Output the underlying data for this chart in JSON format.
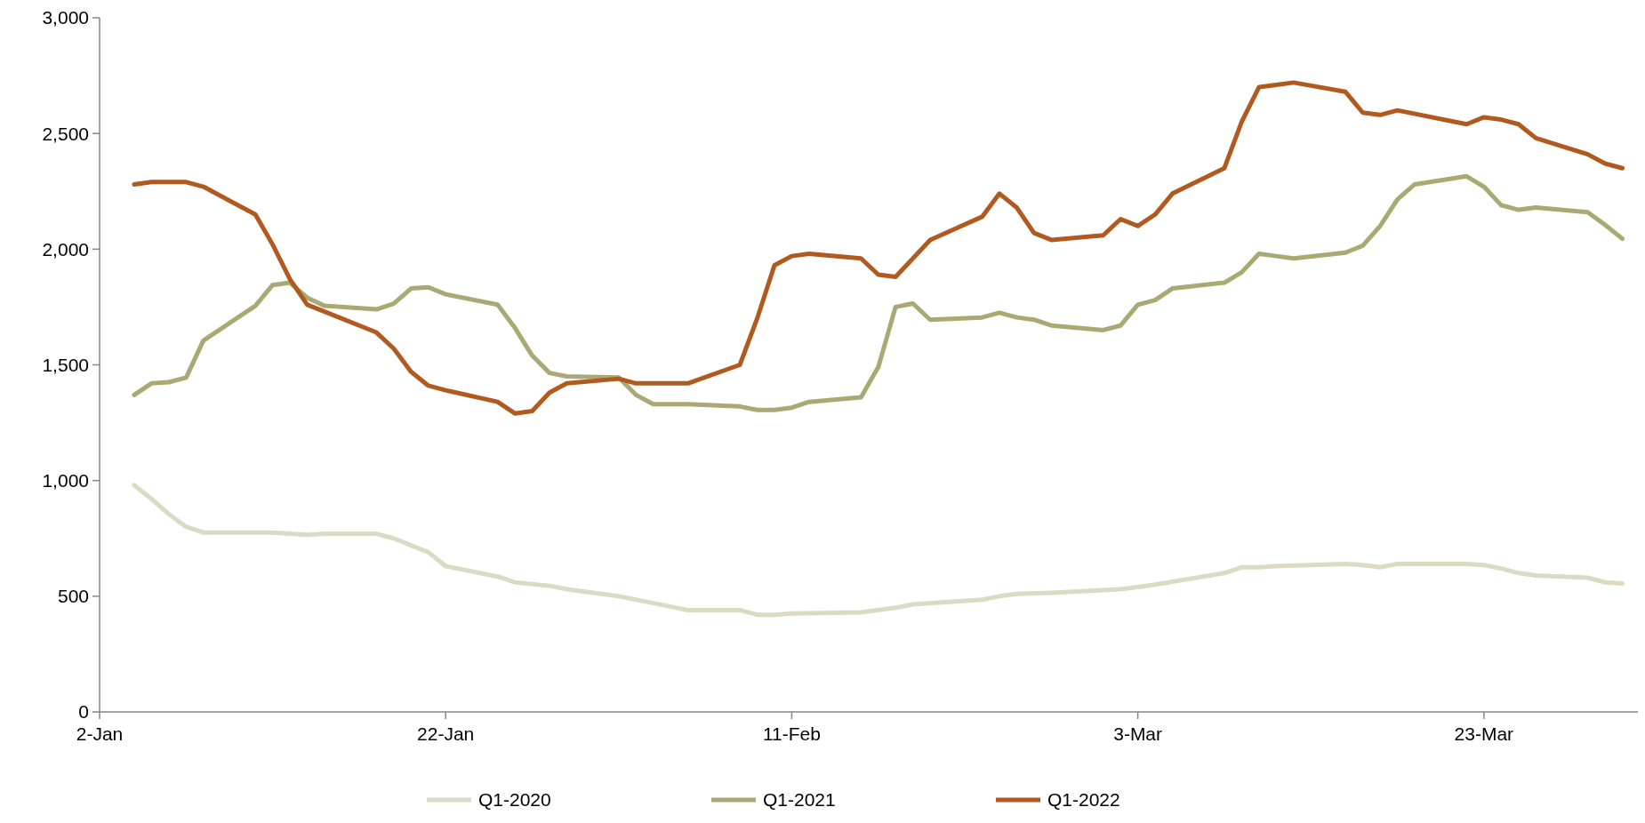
{
  "chart_data": {
    "type": "line",
    "xlim": [
      "--01-02",
      "--04-01"
    ],
    "xticks": [
      {
        "value": "--01-02",
        "label": "2-Jan"
      },
      {
        "value": "--01-22",
        "label": "22-Jan"
      },
      {
        "value": "--02-11",
        "label": "11-Feb"
      },
      {
        "value": "--03-03",
        "label": "3-Mar"
      },
      {
        "value": "--03-23",
        "label": "23-Mar"
      }
    ],
    "ylim": [
      0,
      3000
    ],
    "yticks": [
      0,
      500,
      {
        "value": 1000,
        "label": "1,000"
      },
      {
        "value": 1500,
        "label": "1,500"
      },
      {
        "value": 2000,
        "label": "2,000"
      },
      {
        "value": 2500,
        "label": "2,500"
      },
      {
        "value": 3000,
        "label": "3,000"
      }
    ],
    "grid": false,
    "legend": "bottom",
    "marker": "none",
    "line_style": "solid",
    "series": [
      {
        "name": "Q1-2020",
        "color": "#dcdac4",
        "x": [
          "--01-04",
          "--01-05",
          "--01-06",
          "--01-07",
          "--01-08",
          "--01-12",
          "--01-13",
          "--01-14",
          "--01-15",
          "--01-18",
          "--01-19",
          "--01-20",
          "--01-21",
          "--01-22",
          "--01-25",
          "--01-26",
          "--01-28",
          "--01-29",
          "--02-01",
          "--02-02",
          "--02-03",
          "--02-05",
          "--02-08",
          "--02-09",
          "--02-10",
          "--02-11",
          "--02-15",
          "--02-17",
          "--02-18",
          "--02-22",
          "--02-23",
          "--02-24",
          "--02-26",
          "--03-02",
          "--03-03",
          "--03-04",
          "--03-08",
          "--03-09",
          "--03-10",
          "--03-11",
          "--03-15",
          "--03-16",
          "--03-17",
          "--03-18",
          "--03-22",
          "--03-23",
          "--03-24",
          "--03-25",
          "--03-26",
          "--03-29",
          "--03-30",
          "--03-31"
        ],
        "values": [
          980,
          920,
          855,
          800,
          775,
          775,
          770,
          765,
          770,
          770,
          750,
          720,
          690,
          630,
          585,
          560,
          545,
          530,
          500,
          485,
          470,
          440,
          440,
          420,
          420,
          425,
          430,
          450,
          465,
          485,
          500,
          510,
          515,
          530,
          540,
          550,
          600,
          625,
          625,
          630,
          640,
          635,
          625,
          640,
          640,
          635,
          620,
          600,
          590,
          580,
          560,
          555
        ]
      },
      {
        "name": "Q1-2021",
        "color": "#aaa873",
        "x": [
          "--01-04",
          "--01-05",
          "--01-06",
          "--01-07",
          "--01-08",
          "--01-11",
          "--01-12",
          "--01-13",
          "--01-14",
          "--01-15",
          "--01-18",
          "--01-19",
          "--01-20",
          "--01-21",
          "--01-22",
          "--01-25",
          "--01-26",
          "--01-27",
          "--01-28",
          "--01-29",
          "--02-01",
          "--02-02",
          "--02-03",
          "--02-05",
          "--02-08",
          "--02-09",
          "--02-10",
          "--02-11",
          "--02-12",
          "--02-15",
          "--02-16",
          "--02-17",
          "--02-18",
          "--02-19",
          "--02-22",
          "--02-23",
          "--02-24",
          "--02-25",
          "--02-26",
          "--03-01",
          "--03-02",
          "--03-03",
          "--03-04",
          "--03-05",
          "--03-08",
          "--03-09",
          "--03-10",
          "--03-11",
          "--03-12",
          "--03-15",
          "--03-16",
          "--03-17",
          "--03-18",
          "--03-19",
          "--03-22",
          "--03-23",
          "--03-24",
          "--03-25",
          "--03-26",
          "--03-29",
          "--03-30",
          "--03-31"
        ],
        "values": [
          1370,
          1420,
          1425,
          1445,
          1605,
          1755,
          1845,
          1855,
          1790,
          1755,
          1740,
          1765,
          1830,
          1835,
          1805,
          1760,
          1660,
          1540,
          1465,
          1450,
          1445,
          1370,
          1330,
          1330,
          1320,
          1305,
          1305,
          1315,
          1340,
          1360,
          1490,
          1750,
          1765,
          1695,
          1705,
          1725,
          1705,
          1695,
          1670,
          1650,
          1670,
          1760,
          1780,
          1830,
          1855,
          1900,
          1980,
          1970,
          1960,
          1985,
          2015,
          2100,
          2215,
          2280,
          2315,
          2270,
          2190,
          2170,
          2180,
          2160,
          2105,
          2045
        ]
      },
      {
        "name": "Q1-2022",
        "color": "#b05a1f",
        "x": [
          "--01-04",
          "--01-05",
          "--01-06",
          "--01-07",
          "--01-08",
          "--01-11",
          "--01-12",
          "--01-13",
          "--01-14",
          "--01-15",
          "--01-18",
          "--01-19",
          "--01-20",
          "--01-21",
          "--01-22",
          "--01-25",
          "--01-26",
          "--01-27",
          "--01-28",
          "--01-29",
          "--02-01",
          "--02-02",
          "--02-03",
          "--02-05",
          "--02-08",
          "--02-09",
          "--02-10",
          "--02-11",
          "--02-12",
          "--02-15",
          "--02-16",
          "--02-17",
          "--02-18",
          "--02-19",
          "--02-22",
          "--02-23",
          "--02-24",
          "--02-25",
          "--02-26",
          "--03-01",
          "--03-02",
          "--03-03",
          "--03-04",
          "--03-05",
          "--03-08",
          "--03-09",
          "--03-10",
          "--03-11",
          "--03-12",
          "--03-15",
          "--03-16",
          "--03-17",
          "--03-18",
          "--03-22",
          "--03-23",
          "--03-24",
          "--03-25",
          "--03-26",
          "--03-29",
          "--03-30",
          "--03-31"
        ],
        "values": [
          2280,
          2290,
          2290,
          2290,
          2270,
          2150,
          2020,
          1870,
          1760,
          1730,
          1640,
          1570,
          1470,
          1410,
          1390,
          1340,
          1290,
          1300,
          1380,
          1420,
          1440,
          1420,
          1420,
          1420,
          1500,
          1700,
          1930,
          1970,
          1980,
          1960,
          1890,
          1880,
          1960,
          2040,
          2140,
          2240,
          2180,
          2070,
          2040,
          2060,
          2130,
          2100,
          2150,
          2240,
          2350,
          2550,
          2700,
          2710,
          2720,
          2680,
          2590,
          2580,
          2600,
          2540,
          2570,
          2560,
          2540,
          2480,
          2410,
          2370,
          2350
        ]
      }
    ]
  }
}
